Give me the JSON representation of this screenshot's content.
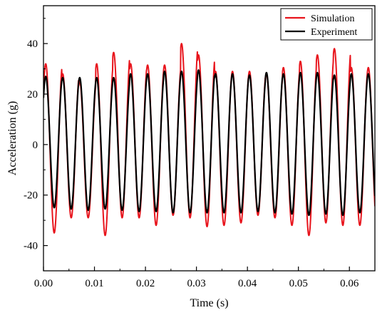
{
  "chart_data": {
    "type": "line",
    "xlabel": "Time (s)",
    "ylabel": "Acceleration (g)",
    "xlim": [
      0,
      0.065
    ],
    "ylim": [
      -50,
      55
    ],
    "xticks": [
      0.0,
      0.01,
      0.02,
      0.03,
      0.04,
      0.05,
      0.06
    ],
    "xtick_labels": [
      "0.00",
      "0.01",
      "0.02",
      "0.03",
      "0.04",
      "0.05",
      "0.06"
    ],
    "yticks": [
      -40,
      -20,
      0,
      20,
      40
    ],
    "ytick_labels": [
      "-40",
      "-20",
      "0",
      "20",
      "40"
    ],
    "grid": false,
    "legend_position": "top-right",
    "period_s": 0.00333,
    "series": [
      {
        "name": "Simulation",
        "color": "#e8141c",
        "peaks": [
          32,
          28,
          25,
          32,
          36.5,
          32,
          31.5,
          31.5,
          40,
          35.5,
          29,
          29,
          29,
          28,
          30.5,
          33,
          35.5,
          38,
          30.5
        ],
        "troughs": [
          -35,
          -29,
          -29,
          -36,
          -29,
          -29,
          -32,
          -28,
          -29,
          -32.5,
          -32,
          -31,
          -28,
          -29,
          -32,
          -36,
          -31,
          -32,
          -32
        ]
      },
      {
        "name": "Experiment",
        "color": "#000000",
        "peaks": [
          27,
          26.5,
          26.5,
          26.5,
          26.5,
          28,
          28,
          29,
          29,
          29.5,
          28,
          28,
          27.5,
          28.5,
          28,
          28.5,
          28.5,
          27.5,
          28
        ],
        "troughs": [
          -25,
          -25.5,
          -26,
          -25.5,
          -26,
          -26.5,
          -26.5,
          -27,
          -27,
          -27,
          -27,
          -27,
          -26.5,
          -27,
          -27.5,
          -28,
          -27.5,
          -28,
          -27
        ]
      }
    ]
  }
}
